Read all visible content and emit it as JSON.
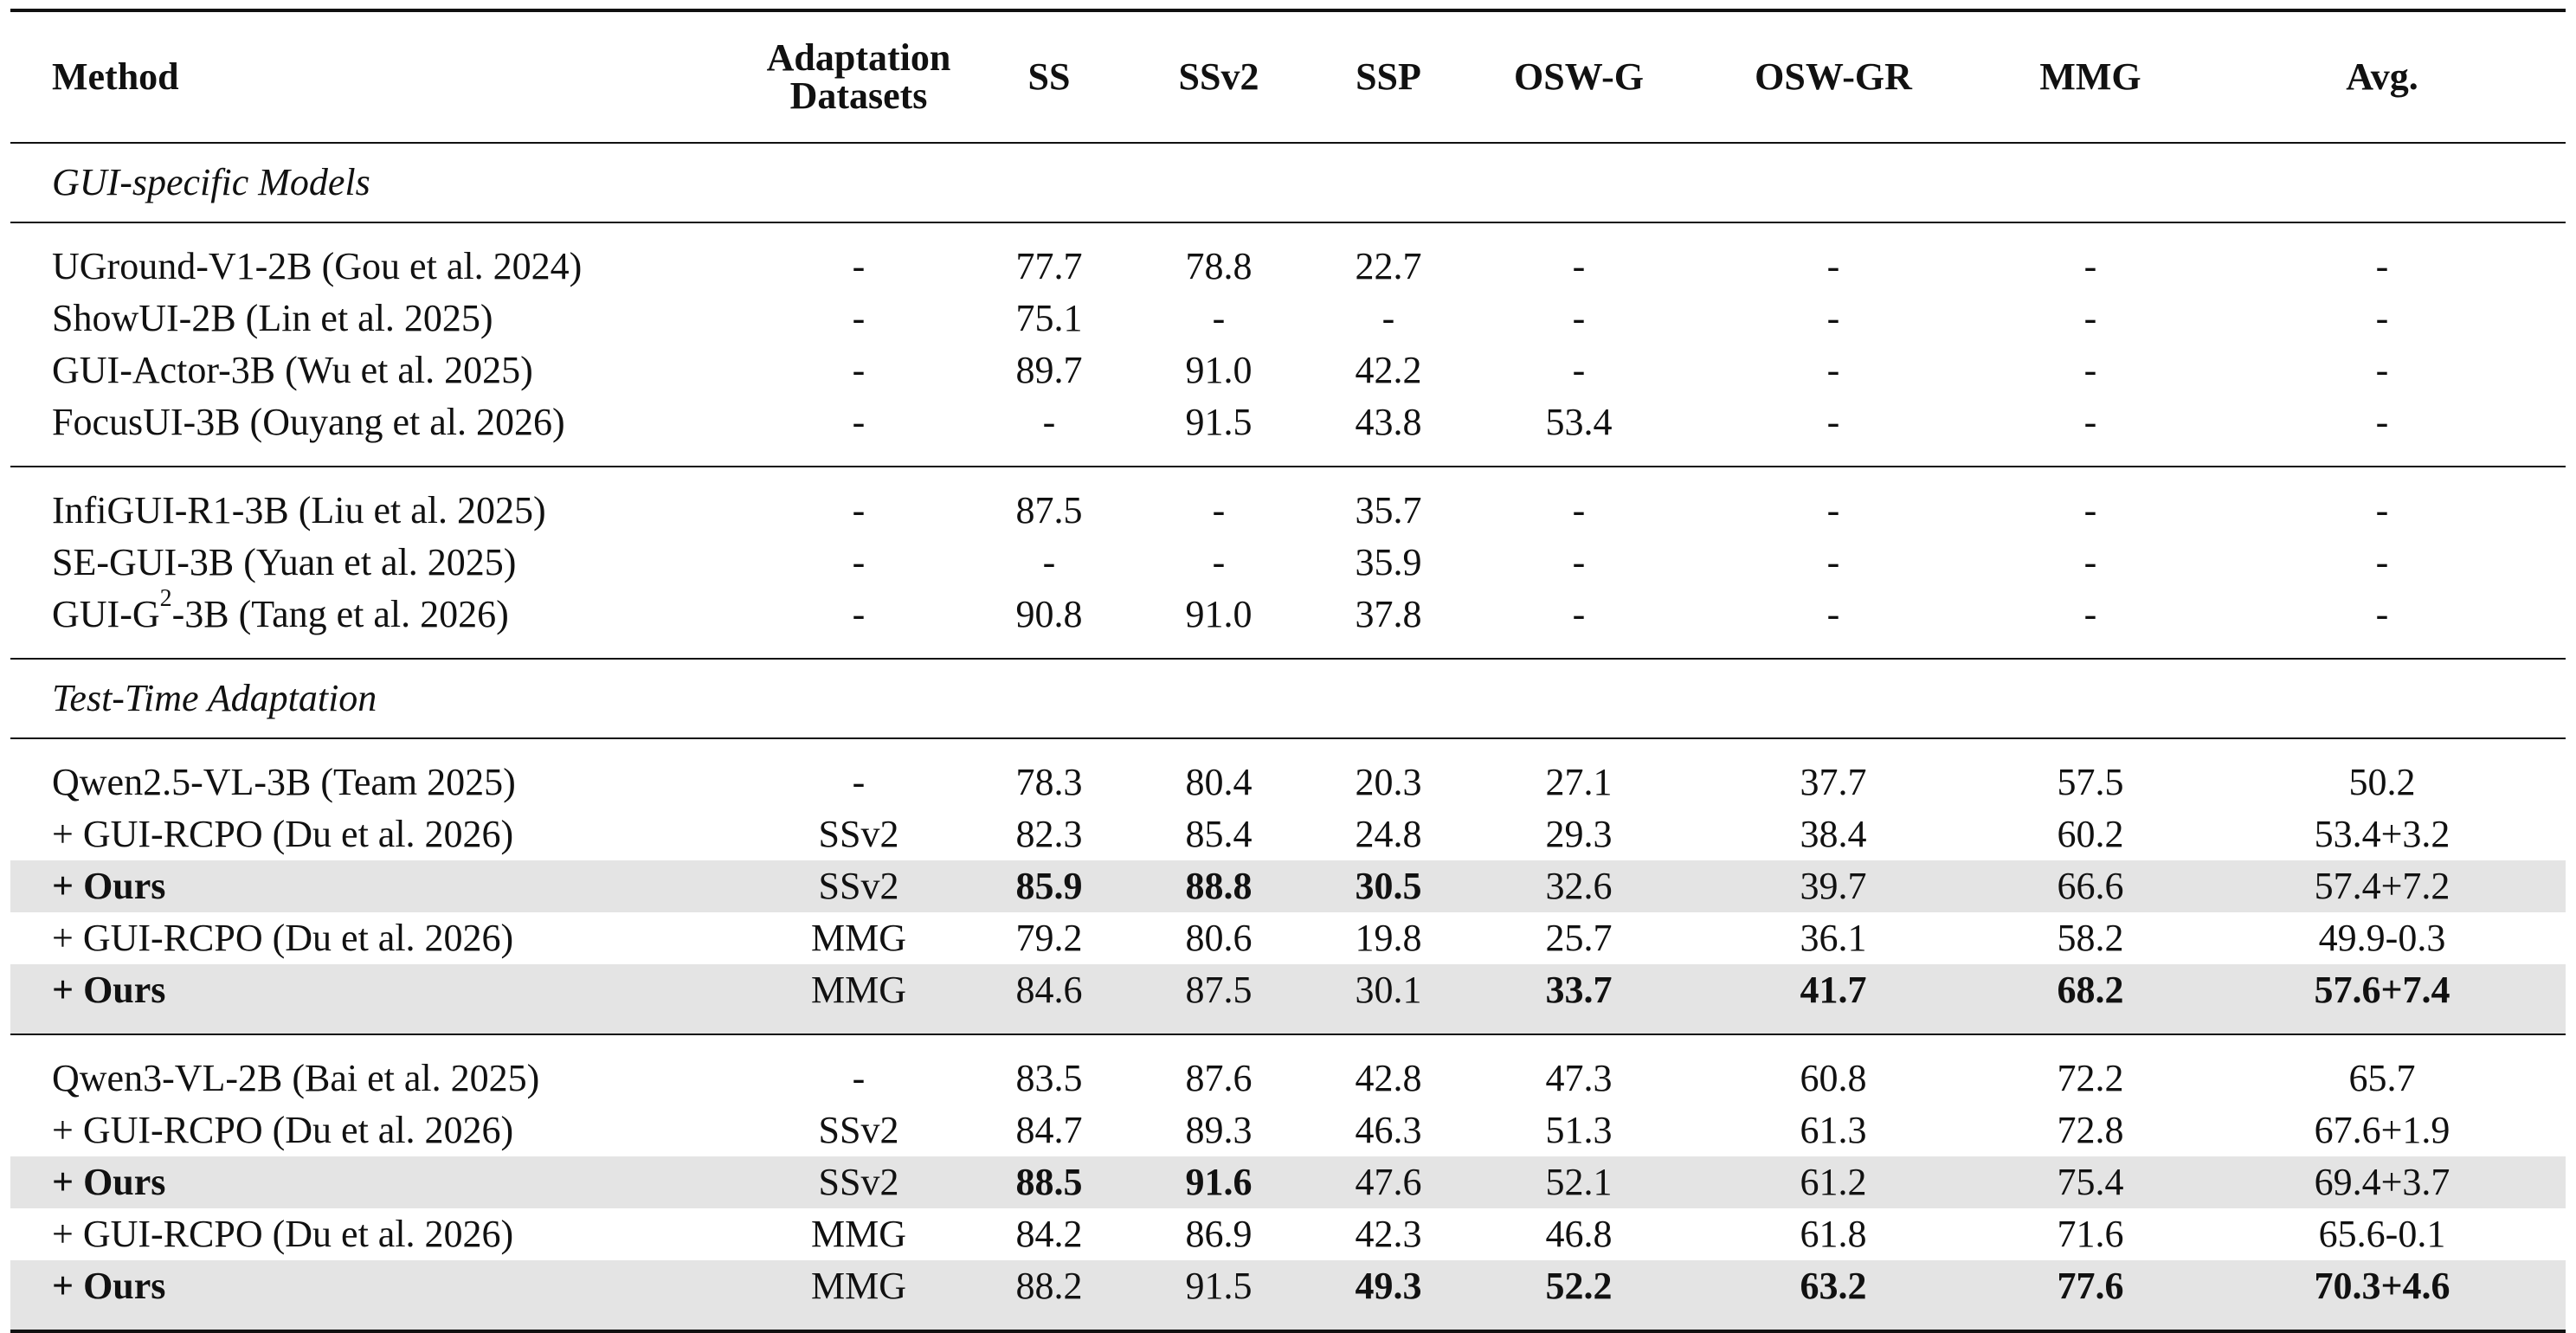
{
  "header": {
    "method": "Method",
    "adaptation_line1": "Adaptation",
    "adaptation_line2": "Datasets",
    "ss": "SS",
    "ssv2": "SSv2",
    "ssp": "SSP",
    "oswg": "OSW-G",
    "oswgr": "OSW-GR",
    "mmg": "MMG",
    "avg": "Avg."
  },
  "sections": {
    "gui_specific": "GUI-specific Models",
    "tta": "Test-Time Adaptation"
  },
  "rows": {
    "uground": {
      "method": "UGround-V1-2B (Gou et al. 2024)",
      "ad": "-",
      "ss": "77.7",
      "ssv2": "78.8",
      "ssp": "22.7",
      "oswg": "-",
      "oswgr": "-",
      "mmg": "-",
      "avg": "-"
    },
    "showui": {
      "method": "ShowUI-2B (Lin et al. 2025)",
      "ad": "-",
      "ss": "75.1",
      "ssv2": "-",
      "ssp": "-",
      "oswg": "-",
      "oswgr": "-",
      "mmg": "-",
      "avg": "-"
    },
    "guiactor": {
      "method": "GUI-Actor-3B (Wu et al. 2025)",
      "ad": "-",
      "ss": "89.7",
      "ssv2": "91.0",
      "ssp": "42.2",
      "oswg": "-",
      "oswgr": "-",
      "mmg": "-",
      "avg": "-"
    },
    "focusui": {
      "method": "FocusUI-3B (Ouyang et al. 2026)",
      "ad": "-",
      "ss": "-",
      "ssv2": "91.5",
      "ssp": "43.8",
      "oswg": "53.4",
      "oswgr": "-",
      "mmg": "-",
      "avg": "-"
    },
    "infigui": {
      "method": "InfiGUI-R1-3B (Liu et al. 2025)",
      "ad": "-",
      "ss": "87.5",
      "ssv2": "-",
      "ssp": "35.7",
      "oswg": "-",
      "oswgr": "-",
      "mmg": "-",
      "avg": "-"
    },
    "segui": {
      "method": "SE-GUI-3B (Yuan et al. 2025)",
      "ad": "-",
      "ss": "-",
      "ssv2": "-",
      "ssp": "35.9",
      "oswg": "-",
      "oswgr": "-",
      "mmg": "-",
      "avg": "-"
    },
    "guig2": {
      "method_pre": "GUI-G",
      "method_sup": "2",
      "method_post": "-3B (Tang et al. 2026)",
      "ad": "-",
      "ss": "90.8",
      "ssv2": "91.0",
      "ssp": "37.8",
      "oswg": "-",
      "oswgr": "-",
      "mmg": "-",
      "avg": "-"
    },
    "q25": {
      "method": "Qwen2.5-VL-3B (Team 2025)",
      "ad": "-",
      "ss": "78.3",
      "ssv2": "80.4",
      "ssp": "20.3",
      "oswg": "27.1",
      "oswgr": "37.7",
      "mmg": "57.5",
      "avg": "50.2"
    },
    "q25_rcpo_ssv2": {
      "method": "+ GUI-RCPO (Du et al. 2026)",
      "ad": "SSv2",
      "ss": "82.3",
      "ssv2": "85.4",
      "ssp": "24.8",
      "oswg": "29.3",
      "oswgr": "38.4",
      "mmg": "60.2",
      "avg": "53.4+3.2"
    },
    "q25_ours_ssv2": {
      "method": "+ Ours",
      "ad": "SSv2",
      "ss": "85.9",
      "ssv2": "88.8",
      "ssp": "30.5",
      "oswg": "32.6",
      "oswgr": "39.7",
      "mmg": "66.6",
      "avg": "57.4+7.2"
    },
    "q25_rcpo_mmg": {
      "method": "+ GUI-RCPO (Du et al. 2026)",
      "ad": "MMG",
      "ss": "79.2",
      "ssv2": "80.6",
      "ssp": "19.8",
      "oswg": "25.7",
      "oswgr": "36.1",
      "mmg": "58.2",
      "avg": "49.9-0.3"
    },
    "q25_ours_mmg": {
      "method": "+ Ours",
      "ad": "MMG",
      "ss": "84.6",
      "ssv2": "87.5",
      "ssp": "30.1",
      "oswg": "33.7",
      "oswgr": "41.7",
      "mmg": "68.2",
      "avg": "57.6+7.4"
    },
    "q3": {
      "method": "Qwen3-VL-2B (Bai et al. 2025)",
      "ad": "-",
      "ss": "83.5",
      "ssv2": "87.6",
      "ssp": "42.8",
      "oswg": "47.3",
      "oswgr": "60.8",
      "mmg": "72.2",
      "avg": "65.7"
    },
    "q3_rcpo_ssv2": {
      "method": "+ GUI-RCPO (Du et al. 2026)",
      "ad": "SSv2",
      "ss": "84.7",
      "ssv2": "89.3",
      "ssp": "46.3",
      "oswg": "51.3",
      "oswgr": "61.3",
      "mmg": "72.8",
      "avg": "67.6+1.9"
    },
    "q3_ours_ssv2": {
      "method": "+ Ours",
      "ad": "SSv2",
      "ss": "88.5",
      "ssv2": "91.6",
      "ssp": "47.6",
      "oswg": "52.1",
      "oswgr": "61.2",
      "mmg": "75.4",
      "avg": "69.4+3.7"
    },
    "q3_rcpo_mmg": {
      "method": "+ GUI-RCPO (Du et al. 2026)",
      "ad": "MMG",
      "ss": "84.2",
      "ssv2": "86.9",
      "ssp": "42.3",
      "oswg": "46.8",
      "oswgr": "61.8",
      "mmg": "71.6",
      "avg": "65.6-0.1"
    },
    "q3_ours_mmg": {
      "method": "+ Ours",
      "ad": "MMG",
      "ss": "88.2",
      "ssv2": "91.5",
      "ssp": "49.3",
      "oswg": "52.2",
      "oswgr": "63.2",
      "mmg": "77.6",
      "avg": "70.3+4.6"
    }
  },
  "colors": {
    "highlight_row": "#e4e4e4",
    "rule": "#111111"
  }
}
